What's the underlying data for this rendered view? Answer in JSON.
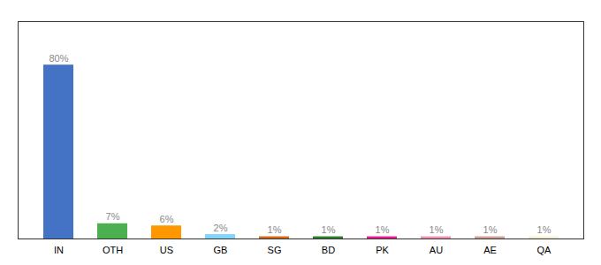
{
  "chart_data": {
    "type": "bar",
    "categories": [
      "IN",
      "OTH",
      "US",
      "GB",
      "SG",
      "BD",
      "PK",
      "AU",
      "AE",
      "QA"
    ],
    "values": [
      80,
      7,
      6,
      2,
      1,
      1,
      1,
      1,
      1,
      1
    ],
    "value_labels": [
      "80%",
      "7%",
      "6%",
      "2%",
      "1%",
      "1%",
      "1%",
      "1%",
      "1%",
      "1%"
    ],
    "colors": [
      "#4472c4",
      "#4caf50",
      "#ff9800",
      "#81d4fa",
      "#d2691e",
      "#2e7d32",
      "#e91e8c",
      "#f48fb1",
      "#d2a090",
      "#f5f0d0"
    ],
    "ylim": [
      0,
      100
    ],
    "data_labels": true,
    "tick_labels": "x",
    "grid": false
  }
}
